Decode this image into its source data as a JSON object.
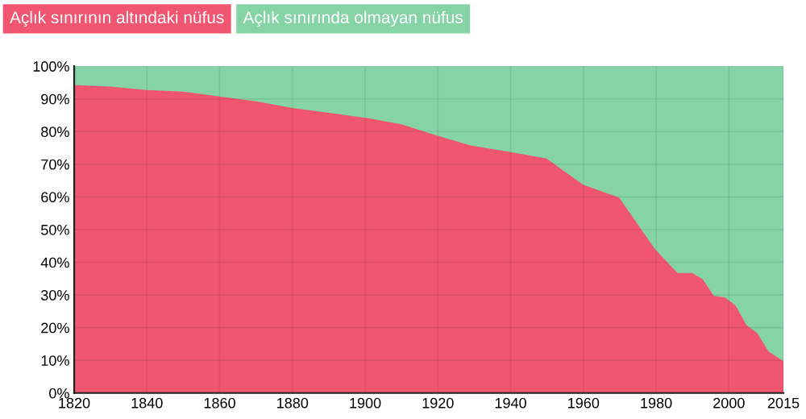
{
  "chart_data": {
    "type": "area",
    "stacked": true,
    "x": [
      1820,
      1830,
      1840,
      1850,
      1860,
      1870,
      1880,
      1890,
      1900,
      1910,
      1920,
      1929,
      1940,
      1950,
      1960,
      1970,
      1980,
      1986,
      1990,
      1993,
      1996,
      1999,
      2002,
      2005,
      2008,
      2011,
      2015
    ],
    "series": [
      {
        "name": "Açlık sınırının altındaki nüfus",
        "color": "#f0566f",
        "values": [
          94.5,
          94,
          93,
          92.5,
          91,
          89.5,
          87.5,
          86,
          84.5,
          82.5,
          79,
          76,
          74,
          72,
          64,
          60,
          44,
          37,
          37,
          35,
          30,
          29.5,
          27,
          21,
          18.5,
          13,
          10
        ]
      },
      {
        "name": "Açlık sınırında olmayan nüfus",
        "color": "#86d3a6",
        "values": [
          5.5,
          6,
          7,
          7.5,
          9,
          10.5,
          12.5,
          14,
          15.5,
          17.5,
          21,
          24,
          26,
          28,
          36,
          40,
          56,
          63,
          63,
          65,
          70,
          70.5,
          73,
          79,
          81.5,
          87,
          90
        ]
      }
    ],
    "xlim": [
      1820,
      2015
    ],
    "xticks": [
      1820,
      1840,
      1860,
      1880,
      1900,
      1920,
      1940,
      1960,
      1980,
      2000,
      2015
    ],
    "ylim": [
      0,
      100
    ],
    "yticks": [
      {
        "value": 0,
        "label": "0%"
      },
      {
        "value": 10,
        "label": "10%"
      },
      {
        "value": 20,
        "label": "20%"
      },
      {
        "value": 30,
        "label": "30%"
      },
      {
        "value": 40,
        "label": "40%"
      },
      {
        "value": 50,
        "label": "50%"
      },
      {
        "value": 60,
        "label": "60%"
      },
      {
        "value": 70,
        "label": "70%"
      },
      {
        "value": 80,
        "label": "80%"
      },
      {
        "value": 90,
        "label": "90%"
      },
      {
        "value": 100,
        "label": "100%"
      }
    ],
    "grid": true,
    "legend": "top left"
  }
}
